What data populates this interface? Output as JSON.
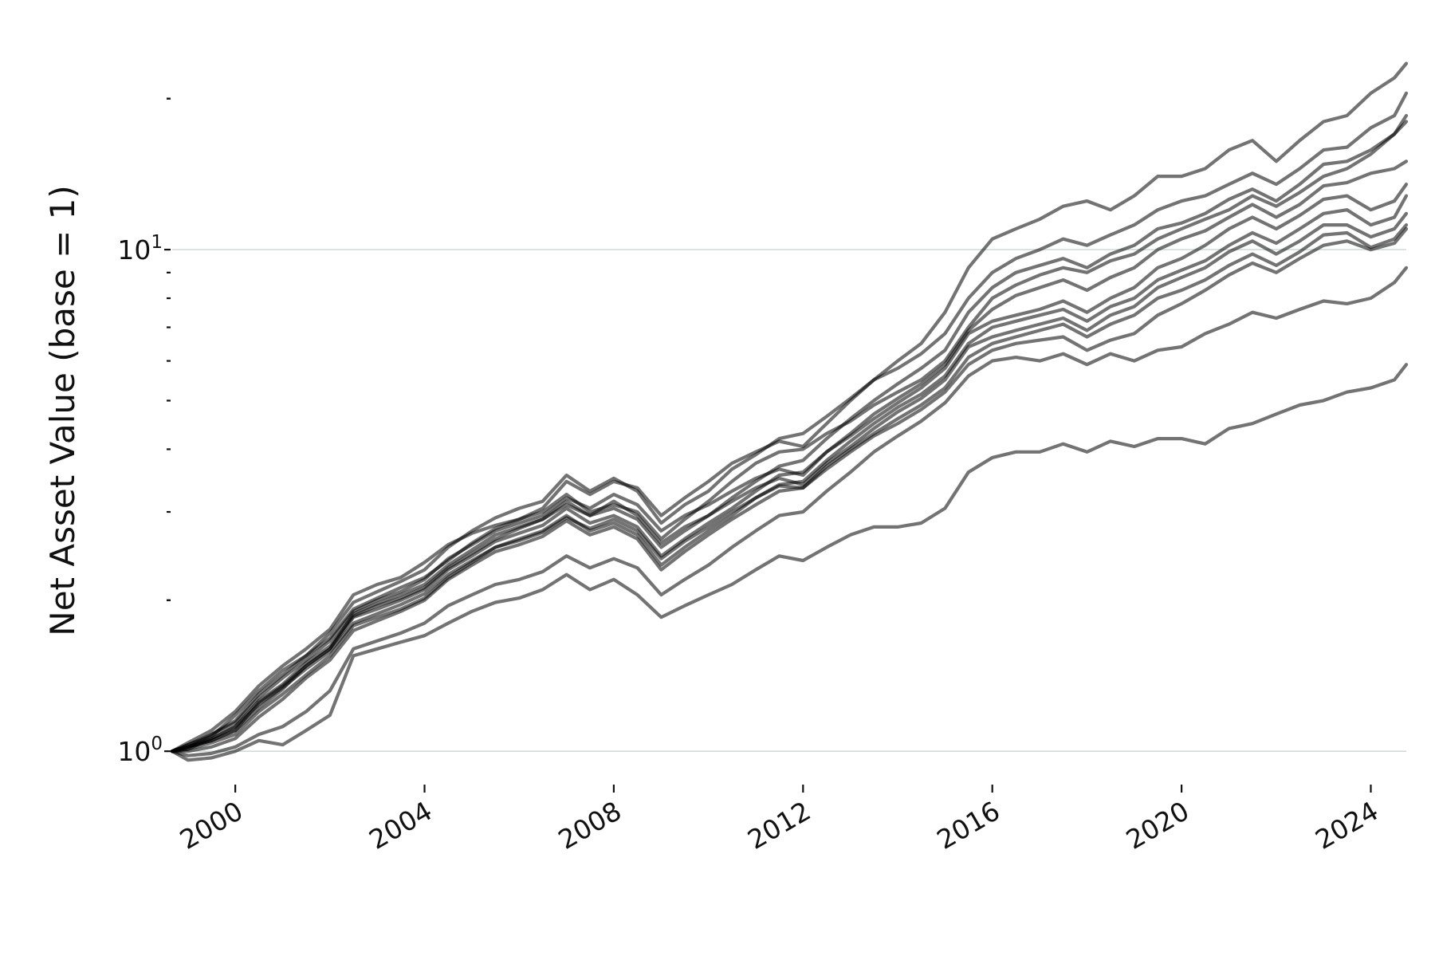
{
  "chart_data": {
    "type": "line",
    "title": "",
    "xlabel": "",
    "ylabel": "Net Asset Value (base = 1)",
    "y_scale": "log",
    "ylim": [
      0.93,
      26
    ],
    "xlim": [
      "1998-09",
      "2024-10"
    ],
    "x_ticks": [
      "2000",
      "2004",
      "2008",
      "2012",
      "2016",
      "2020",
      "2024"
    ],
    "y_ticks": [
      {
        "value": 1,
        "base": "10",
        "exp": "0"
      },
      {
        "value": 10,
        "base": "10",
        "exp": "1"
      }
    ],
    "grid": "horizontal at major y ticks",
    "legend": "none",
    "line_color": "#000000",
    "x": [
      "1998-09",
      "1999-01",
      "1999-07",
      "2000-01",
      "2000-07",
      "2001-01",
      "2001-07",
      "2002-01",
      "2002-07",
      "2003-01",
      "2003-07",
      "2004-01",
      "2004-07",
      "2005-01",
      "2005-07",
      "2006-01",
      "2006-07",
      "2007-01",
      "2007-07",
      "2008-01",
      "2008-07",
      "2009-01",
      "2009-07",
      "2010-01",
      "2010-07",
      "2011-01",
      "2011-07",
      "2012-01",
      "2012-07",
      "2013-01",
      "2013-07",
      "2014-01",
      "2014-07",
      "2015-01",
      "2015-07",
      "2016-01",
      "2016-07",
      "2017-01",
      "2017-07",
      "2018-01",
      "2018-07",
      "2019-01",
      "2019-07",
      "2020-01",
      "2020-07",
      "2021-01",
      "2021-07",
      "2022-01",
      "2022-07",
      "2023-01",
      "2023-07",
      "2024-01",
      "2024-07",
      "2024-10"
    ],
    "series": [
      {
        "values": [
          1.0,
          1.02,
          1.08,
          1.15,
          1.3,
          1.42,
          1.55,
          1.68,
          1.92,
          2.02,
          2.12,
          2.22,
          2.4,
          2.6,
          2.78,
          2.9,
          3.05,
          3.45,
          3.25,
          3.45,
          3.35,
          2.95,
          3.2,
          3.45,
          3.75,
          3.95,
          4.15,
          4.05,
          4.5,
          5.0,
          5.5,
          6.0,
          6.5,
          7.5,
          9.2,
          10.5,
          11.0,
          11.5,
          12.2,
          12.5,
          12.0,
          12.8,
          14.0,
          14.0,
          14.5,
          15.8,
          16.5,
          15.0,
          16.5,
          18.0,
          18.5,
          20.5,
          22.0,
          23.5
        ]
      },
      {
        "values": [
          1.0,
          1.03,
          1.07,
          1.18,
          1.32,
          1.45,
          1.55,
          1.72,
          1.98,
          2.08,
          2.18,
          2.3,
          2.55,
          2.75,
          2.92,
          3.05,
          3.15,
          3.55,
          3.3,
          3.5,
          3.3,
          2.85,
          3.1,
          3.3,
          3.65,
          3.9,
          4.2,
          4.3,
          4.65,
          5.05,
          5.5,
          5.8,
          6.2,
          6.8,
          8.0,
          9.0,
          9.6,
          10.0,
          10.5,
          10.2,
          10.7,
          11.2,
          12.0,
          12.5,
          12.8,
          13.5,
          14.2,
          13.5,
          14.5,
          15.8,
          16.0,
          17.5,
          18.5,
          20.5
        ]
      },
      {
        "values": [
          1.0,
          1.04,
          1.1,
          1.2,
          1.35,
          1.48,
          1.6,
          1.75,
          2.05,
          2.15,
          2.22,
          2.38,
          2.58,
          2.72,
          2.82,
          2.9,
          3.0,
          3.25,
          3.0,
          3.1,
          3.0,
          2.65,
          2.9,
          3.15,
          3.45,
          3.75,
          3.95,
          4.0,
          4.3,
          4.55,
          4.9,
          5.2,
          5.5,
          6.0,
          7.0,
          8.0,
          8.5,
          8.9,
          9.2,
          9.0,
          9.5,
          9.8,
          10.5,
          11.0,
          11.5,
          12.0,
          12.8,
          12.2,
          13.0,
          14.0,
          14.5,
          15.5,
          17.0,
          18.5
        ]
      },
      {
        "values": [
          1.0,
          1.01,
          1.06,
          1.12,
          1.26,
          1.36,
          1.5,
          1.62,
          1.86,
          1.95,
          2.02,
          2.12,
          2.32,
          2.48,
          2.65,
          2.78,
          2.9,
          3.15,
          2.95,
          3.05,
          2.9,
          2.55,
          2.75,
          2.95,
          3.2,
          3.45,
          3.7,
          3.8,
          4.2,
          4.6,
          5.0,
          5.4,
          5.8,
          6.3,
          7.5,
          8.4,
          9.0,
          9.3,
          9.6,
          9.2,
          9.8,
          10.2,
          11.0,
          11.3,
          11.8,
          12.6,
          13.2,
          12.5,
          13.5,
          14.8,
          15.0,
          15.8,
          17.0,
          18.0
        ]
      },
      {
        "values": [
          1.0,
          1.02,
          1.05,
          1.1,
          1.22,
          1.33,
          1.48,
          1.6,
          1.85,
          1.92,
          2.0,
          2.1,
          2.3,
          2.45,
          2.62,
          2.72,
          2.82,
          3.05,
          2.85,
          2.95,
          2.8,
          2.45,
          2.65,
          2.85,
          3.05,
          3.3,
          3.55,
          3.6,
          3.95,
          4.3,
          4.7,
          5.05,
          5.4,
          5.9,
          6.9,
          7.6,
          8.1,
          8.4,
          8.7,
          8.3,
          8.8,
          9.2,
          10.0,
          10.5,
          10.9,
          11.6,
          12.3,
          11.6,
          12.3,
          13.4,
          13.6,
          14.2,
          14.5,
          15.0
        ]
      },
      {
        "values": [
          1.0,
          1.03,
          1.08,
          1.14,
          1.28,
          1.4,
          1.52,
          1.66,
          1.9,
          2.0,
          2.08,
          2.2,
          2.42,
          2.58,
          2.75,
          2.85,
          2.95,
          3.2,
          3.05,
          3.25,
          3.1,
          2.75,
          2.95,
          3.1,
          3.3,
          3.5,
          3.65,
          3.55,
          3.95,
          4.25,
          4.6,
          4.95,
          5.3,
          5.8,
          6.8,
          7.2,
          7.4,
          7.6,
          7.9,
          7.5,
          8.0,
          8.4,
          9.2,
          9.6,
          10.2,
          11.0,
          11.6,
          11.0,
          11.7,
          12.6,
          12.8,
          12.0,
          12.5,
          13.5
        ]
      },
      {
        "values": [
          1.0,
          1.01,
          1.04,
          1.08,
          1.2,
          1.3,
          1.42,
          1.55,
          1.78,
          1.85,
          1.92,
          2.02,
          2.22,
          2.38,
          2.55,
          2.65,
          2.75,
          2.95,
          2.75,
          2.85,
          2.7,
          2.35,
          2.55,
          2.75,
          2.95,
          3.2,
          3.4,
          3.45,
          3.8,
          4.15,
          4.5,
          4.85,
          5.15,
          5.6,
          6.5,
          7.0,
          7.2,
          7.4,
          7.6,
          7.2,
          7.7,
          8.0,
          8.7,
          9.1,
          9.5,
          10.2,
          10.8,
          10.3,
          11.0,
          11.8,
          12.0,
          11.2,
          11.6,
          12.8
        ]
      },
      {
        "values": [
          1.0,
          1.02,
          1.05,
          1.1,
          1.25,
          1.35,
          1.48,
          1.6,
          1.88,
          1.97,
          2.05,
          2.15,
          2.35,
          2.52,
          2.7,
          2.8,
          2.9,
          3.1,
          2.95,
          3.15,
          2.95,
          2.6,
          2.8,
          2.95,
          3.15,
          3.35,
          3.5,
          3.4,
          3.75,
          4.05,
          4.4,
          4.75,
          5.05,
          5.5,
          6.4,
          6.7,
          6.9,
          7.1,
          7.3,
          6.9,
          7.4,
          7.7,
          8.4,
          8.8,
          9.2,
          9.9,
          10.4,
          9.8,
          10.4,
          11.2,
          11.2,
          10.6,
          11.0,
          11.8
        ]
      },
      {
        "values": [
          1.0,
          1.0,
          1.02,
          1.06,
          1.17,
          1.27,
          1.4,
          1.52,
          1.74,
          1.82,
          1.9,
          2.0,
          2.2,
          2.35,
          2.5,
          2.58,
          2.68,
          2.88,
          2.7,
          2.8,
          2.65,
          2.3,
          2.5,
          2.7,
          2.9,
          3.1,
          3.3,
          3.35,
          3.7,
          4.0,
          4.3,
          4.6,
          4.9,
          5.3,
          6.1,
          6.5,
          6.7,
          6.9,
          7.1,
          6.7,
          7.1,
          7.4,
          8.0,
          8.3,
          8.7,
          9.3,
          9.8,
          9.3,
          9.9,
          10.7,
          10.8,
          10.1,
          10.5,
          11.2
        ]
      },
      {
        "values": [
          1.0,
          1.02,
          1.06,
          1.12,
          1.24,
          1.34,
          1.46,
          1.58,
          1.8,
          1.88,
          1.96,
          2.06,
          2.25,
          2.4,
          2.55,
          2.63,
          2.73,
          2.92,
          2.78,
          2.9,
          2.75,
          2.42,
          2.62,
          2.8,
          3.0,
          3.2,
          3.38,
          3.35,
          3.65,
          3.95,
          4.25,
          4.5,
          4.8,
          5.2,
          5.9,
          6.3,
          6.5,
          6.6,
          6.7,
          6.3,
          6.6,
          6.8,
          7.4,
          7.8,
          8.3,
          8.9,
          9.4,
          9.0,
          9.6,
          10.2,
          10.4,
          10.0,
          10.3,
          11.0
        ]
      },
      {
        "values": [
          1.0,
          0.98,
          0.99,
          1.02,
          1.08,
          1.12,
          1.2,
          1.32,
          1.6,
          1.66,
          1.72,
          1.8,
          1.95,
          2.05,
          2.15,
          2.2,
          2.28,
          2.45,
          2.32,
          2.42,
          2.32,
          2.05,
          2.2,
          2.35,
          2.55,
          2.75,
          2.95,
          3.0,
          3.3,
          3.6,
          3.95,
          4.25,
          4.55,
          4.95,
          5.6,
          6.0,
          6.1,
          6.0,
          6.2,
          5.9,
          6.2,
          6.0,
          6.3,
          6.4,
          6.8,
          7.1,
          7.5,
          7.3,
          7.6,
          7.9,
          7.8,
          8.0,
          8.6,
          9.2
        ]
      },
      {
        "values": [
          1.0,
          0.96,
          0.97,
          1.0,
          1.05,
          1.03,
          1.1,
          1.18,
          1.55,
          1.6,
          1.65,
          1.7,
          1.8,
          1.9,
          1.98,
          2.02,
          2.1,
          2.25,
          2.1,
          2.2,
          2.05,
          1.85,
          1.95,
          2.05,
          2.15,
          2.3,
          2.45,
          2.4,
          2.55,
          2.7,
          2.8,
          2.8,
          2.85,
          3.05,
          3.6,
          3.85,
          3.95,
          3.95,
          4.1,
          3.95,
          4.15,
          4.05,
          4.2,
          4.2,
          4.1,
          4.4,
          4.5,
          4.7,
          4.9,
          5.0,
          5.2,
          5.3,
          5.5,
          5.9
        ]
      }
    ]
  }
}
